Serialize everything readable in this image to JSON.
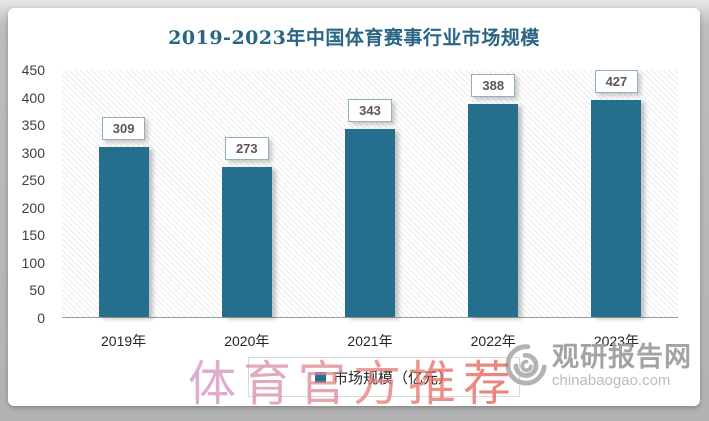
{
  "chart_data": {
    "type": "bar",
    "title": "2019-2023年中国体育赛事行业市场规模",
    "categories": [
      "2019年",
      "2020年",
      "2021年",
      "2022年",
      "2023年"
    ],
    "values": [
      309,
      273,
      343,
      388,
      427
    ],
    "series_name": "市场规模（亿元）",
    "xlabel": "",
    "ylabel": "",
    "ylim": [
      0,
      450
    ],
    "yticks": [
      0,
      50,
      100,
      150,
      200,
      250,
      300,
      350,
      400,
      450
    ],
    "grid": false,
    "legend_position": "bottom",
    "data_labels": true
  },
  "colors": {
    "bar": "#256e8e",
    "title": "#2b6584",
    "value_label_text": "#595959",
    "value_label_border": "#8fb0c3",
    "axis_line": "#9a9a9a",
    "watermark_gradient_start": "#cf94cf",
    "watermark_gradient_end": "#e2574e",
    "logo_gray": "#a3a3a3"
  },
  "legend": {
    "label": "市场规模（亿元）"
  },
  "watermark": {
    "text": "体育官方推荐"
  },
  "logo": {
    "site_name": "观研报告网",
    "site_url": "chinabaogao.com"
  }
}
